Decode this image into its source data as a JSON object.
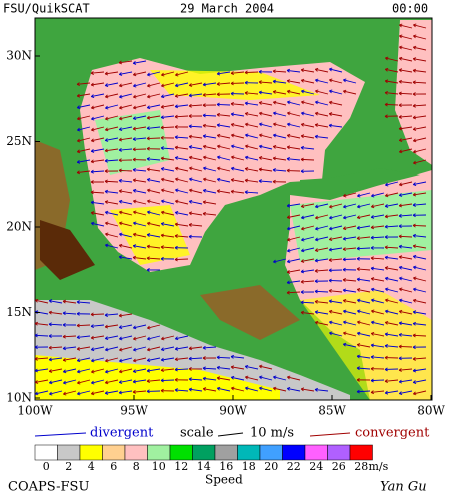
{
  "header": {
    "source": "FSU/QuikSCAT",
    "date": "29 March 2004",
    "time": "00:00"
  },
  "axes": {
    "lat_labels": [
      "10N",
      "15N",
      "20N",
      "25N",
      "30N"
    ],
    "lon_labels": [
      "100W",
      "95W",
      "90W",
      "85W",
      "80W"
    ]
  },
  "legend": {
    "divergent": "divergent",
    "scale": "scale",
    "scale_value": "10 m/s",
    "convergent": "convergent"
  },
  "colorbar": {
    "labels": [
      0,
      2,
      4,
      6,
      8,
      10,
      12,
      14,
      16,
      18,
      20,
      22,
      24,
      26,
      28
    ],
    "unit": "m/s",
    "title": "Speed",
    "colors": [
      "#ffffff",
      "#c8c8c8",
      "#ffff00",
      "#ffd090",
      "#ffc0c0",
      "#a0f0a0",
      "#00e000",
      "#00a060",
      "#a0a0a0",
      "#00b8b8",
      "#40a0ff",
      "#0000ff",
      "#ff60ff",
      "#b060ff",
      "#ff0000",
      "#d04000",
      "#000000"
    ]
  },
  "footer": {
    "credit": "COAPS-FSU",
    "author": "Yan Gu"
  }
}
